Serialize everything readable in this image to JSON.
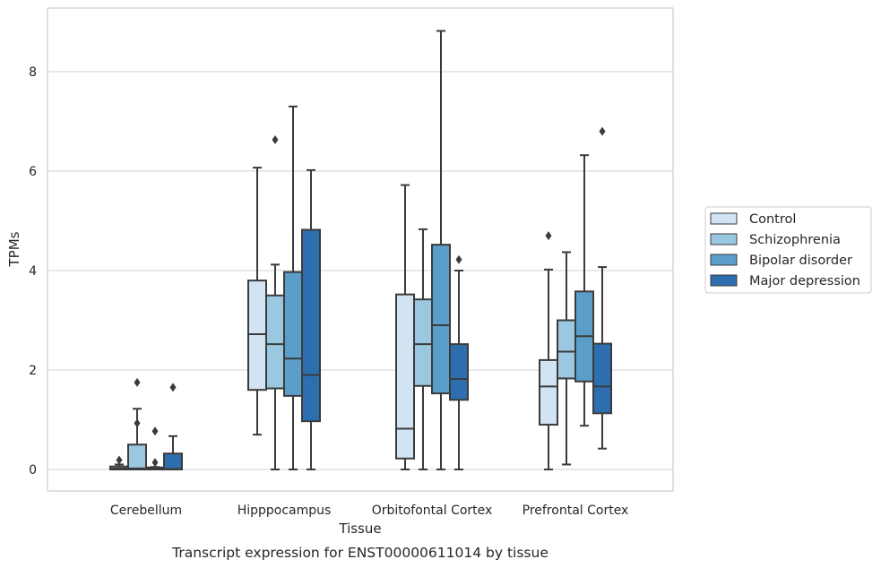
{
  "chart_data": {
    "type": "box",
    "caption": "Transcript expression for ENST00000611014 by tissue",
    "xlabel": "Tissue",
    "ylabel": "TPMs",
    "ylim": [
      -0.42,
      9.3
    ],
    "yticks": [
      0,
      2,
      4,
      6,
      8
    ],
    "grid": "horizontal",
    "legend_position": "right",
    "categories": [
      "Cerebellum",
      "Hipppocampus",
      "Orbitofontal Cortex",
      "Prefrontal Cortex"
    ],
    "series": [
      {
        "name": "Control",
        "color": "#d2e3f3",
        "boxes": [
          {
            "q1": 0.0,
            "median": 0.02,
            "q3": 0.06,
            "whisker_low": 0.0,
            "whisker_high": 0.1,
            "outliers": [
              0.19
            ]
          },
          {
            "q1": 1.6,
            "median": 2.72,
            "q3": 3.8,
            "whisker_low": 0.7,
            "whisker_high": 6.07,
            "outliers": []
          },
          {
            "q1": 0.22,
            "median": 0.82,
            "q3": 3.52,
            "whisker_low": 0.0,
            "whisker_high": 5.72,
            "outliers": []
          },
          {
            "q1": 0.9,
            "median": 1.67,
            "q3": 2.2,
            "whisker_low": 0.0,
            "whisker_high": 4.02,
            "outliers": [
              4.7
            ]
          }
        ]
      },
      {
        "name": "Schizophrenia",
        "color": "#9ac8e0",
        "boxes": [
          {
            "q1": 0.0,
            "median": 0.02,
            "q3": 0.5,
            "whisker_low": 0.0,
            "whisker_high": 1.22,
            "outliers": [
              1.75,
              0.93
            ]
          },
          {
            "q1": 1.63,
            "median": 2.52,
            "q3": 3.5,
            "whisker_low": 0.0,
            "whisker_high": 4.12,
            "outliers": [
              6.63
            ]
          },
          {
            "q1": 1.68,
            "median": 2.52,
            "q3": 3.42,
            "whisker_low": 0.0,
            "whisker_high": 4.83,
            "outliers": []
          },
          {
            "q1": 1.83,
            "median": 2.37,
            "q3": 3.0,
            "whisker_low": 0.1,
            "whisker_high": 4.37,
            "outliers": []
          }
        ]
      },
      {
        "name": "Bipolar disorder",
        "color": "#5b9ec9",
        "boxes": [
          {
            "q1": 0.0,
            "median": 0.02,
            "q3": 0.04,
            "whisker_low": 0.0,
            "whisker_high": 0.05,
            "outliers": [
              0.77,
              0.14
            ]
          },
          {
            "q1": 1.48,
            "median": 2.23,
            "q3": 3.97,
            "whisker_low": 0.0,
            "whisker_high": 7.3,
            "outliers": []
          },
          {
            "q1": 1.53,
            "median": 2.9,
            "q3": 4.52,
            "whisker_low": 0.0,
            "whisker_high": 8.82,
            "outliers": []
          },
          {
            "q1": 1.77,
            "median": 2.68,
            "q3": 3.58,
            "whisker_low": 0.88,
            "whisker_high": 6.32,
            "outliers": []
          }
        ]
      },
      {
        "name": "Major depression",
        "color": "#2d6fae",
        "boxes": [
          {
            "q1": 0.0,
            "median": 0.01,
            "q3": 0.32,
            "whisker_low": 0.0,
            "whisker_high": 0.67,
            "outliers": [
              1.65
            ]
          },
          {
            "q1": 0.97,
            "median": 1.9,
            "q3": 4.82,
            "whisker_low": 0.0,
            "whisker_high": 6.02,
            "outliers": []
          },
          {
            "q1": 1.4,
            "median": 1.82,
            "q3": 2.52,
            "whisker_low": 0.0,
            "whisker_high": 4.0,
            "outliers": [
              4.22
            ]
          },
          {
            "q1": 1.13,
            "median": 1.67,
            "q3": 2.53,
            "whisker_low": 0.42,
            "whisker_high": 4.07,
            "outliers": [
              6.8
            ]
          }
        ]
      }
    ]
  }
}
